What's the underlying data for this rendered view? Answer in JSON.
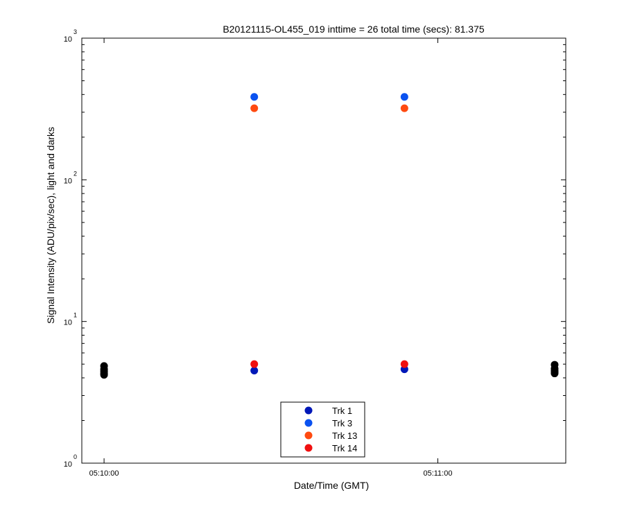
{
  "chart_data": {
    "type": "scatter",
    "title": "B20121115-OL455_019 inttime = 26 total time (secs): 81.375",
    "xlabel": "Date/Time (GMT)",
    "ylabel": "Signal Intensity (ADU/pix/sec), light and darks",
    "y_scale": "log",
    "y_base": "10",
    "y_tick_exponents": [
      "0",
      "1",
      "2",
      "3"
    ],
    "ylim": [
      1,
      1000
    ],
    "x_unit": "time of day (GMT)",
    "xlim": [
      "05:09:56",
      "05:11:23"
    ],
    "x_tick_labels": [
      "05:10:00",
      "05:11:00"
    ],
    "grid": false,
    "legend_position": "bottom-center",
    "series": [
      {
        "name": "Trk 1",
        "color": "#0018b8",
        "x": [
          "05:10:27",
          "05:10:54"
        ],
        "y": [
          4.5,
          4.6
        ]
      },
      {
        "name": "Trk 3",
        "color": "#0a52f0",
        "x": [
          "05:10:27",
          "05:10:54"
        ],
        "y": [
          385,
          385
        ]
      },
      {
        "name": "Trk 13",
        "color": "#ff4a10",
        "x": [
          "05:10:27",
          "05:10:54"
        ],
        "y": [
          320,
          320
        ]
      },
      {
        "name": "Trk 14",
        "color": "#f01010",
        "x": [
          "05:10:27",
          "05:10:54"
        ],
        "y": [
          5.0,
          5.0
        ]
      },
      {
        "color": "#000000",
        "x": [
          "05:10:00",
          "05:10:00",
          "05:10:00",
          "05:10:00",
          "05:10:00",
          "05:11:21",
          "05:11:21",
          "05:11:21",
          "05:11:21",
          "05:11:21"
        ],
        "y": [
          4.85,
          4.6,
          4.45,
          4.3,
          4.2,
          4.95,
          4.65,
          4.5,
          4.4,
          4.3
        ]
      }
    ]
  }
}
